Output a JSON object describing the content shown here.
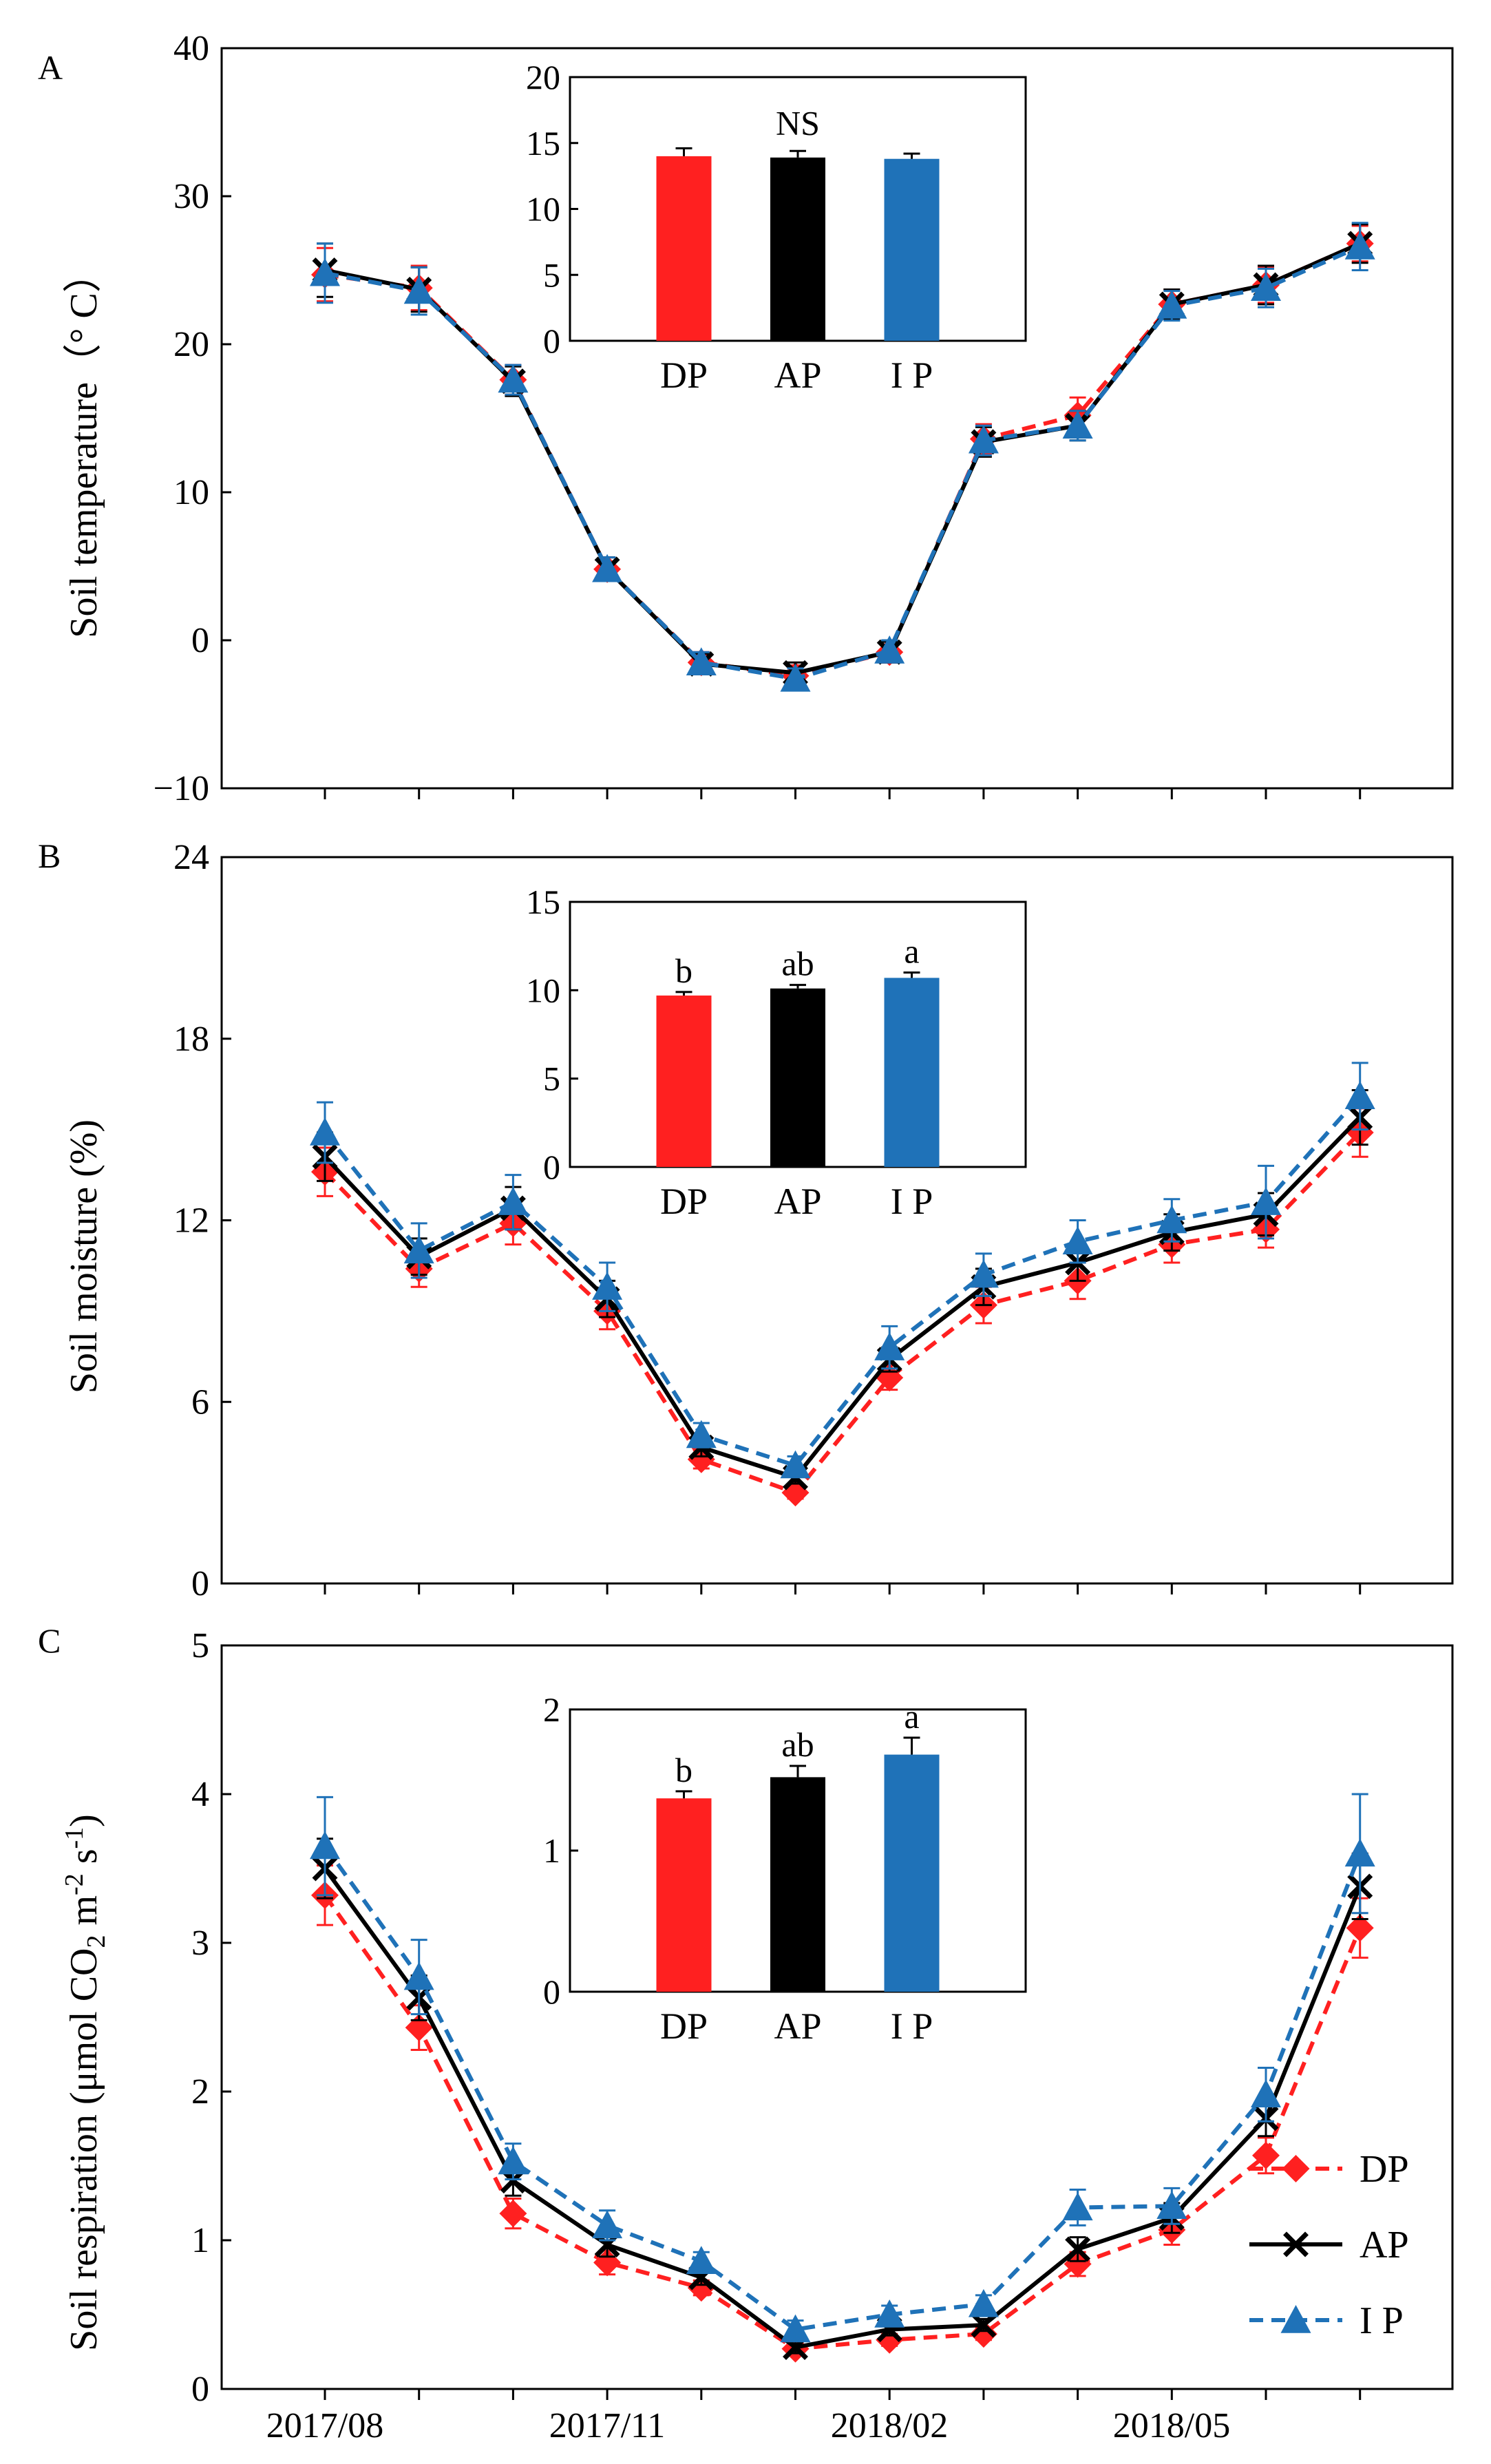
{
  "figure": {
    "x_tick_labels": [
      "2017/08",
      "2017/11",
      "2018/02",
      "2018/05"
    ],
    "legend": [
      {
        "key": "DP",
        "label": "DP"
      },
      {
        "key": "AP",
        "label": "AP"
      },
      {
        "key": "IP",
        "label": "I P"
      }
    ]
  },
  "series_style": {
    "DP": {
      "color": "#ff2020",
      "marker": "diamond",
      "dash": "dashed"
    },
    "AP": {
      "color": "#000000",
      "marker": "x",
      "dash": "solid"
    },
    "IP": {
      "color": "#1f72b8",
      "marker": "triangle",
      "dash": "dashed"
    }
  },
  "chart_data": [
    {
      "type": "line",
      "panel": "A",
      "ylabel": "Soil temperature（° C）",
      "ylim": [
        -10,
        40
      ],
      "yticks": [
        "−10",
        "0",
        "10",
        "20",
        "30",
        "40"
      ],
      "ytick_values": [
        -10,
        0,
        10,
        20,
        30,
        40
      ],
      "x": [
        1,
        2,
        3,
        4,
        5,
        6,
        7,
        8,
        9,
        10,
        11,
        12
      ],
      "series": [
        {
          "name": "DP",
          "values": [
            24.7,
            23.8,
            17.6,
            4.8,
            -1.5,
            -2.4,
            -0.8,
            13.6,
            15.2,
            22.7,
            24.0,
            26.8
          ],
          "err": [
            1.8,
            1.5,
            1.0,
            0.8,
            0.7,
            0.7,
            0.7,
            1.0,
            1.2,
            1.0,
            1.2,
            1.2
          ]
        },
        {
          "name": "AP",
          "values": [
            25.0,
            23.7,
            17.5,
            4.8,
            -1.6,
            -2.2,
            -0.8,
            13.4,
            14.5,
            22.7,
            24.0,
            26.8
          ],
          "err": [
            1.8,
            1.5,
            1.0,
            0.8,
            0.7,
            0.7,
            0.7,
            1.0,
            1.0,
            1.0,
            1.3,
            1.3
          ]
        },
        {
          "name": "IP",
          "values": [
            24.8,
            23.6,
            17.6,
            4.8,
            -1.5,
            -2.6,
            -0.7,
            13.5,
            14.5,
            22.6,
            23.8,
            26.6
          ],
          "err": [
            2.0,
            1.6,
            1.0,
            0.8,
            0.7,
            0.7,
            0.7,
            1.0,
            1.0,
            1.0,
            1.3,
            1.6
          ]
        }
      ],
      "inset": {
        "type": "bar",
        "categories": [
          "DP",
          "AP",
          "I P"
        ],
        "values": [
          14.0,
          13.9,
          13.8
        ],
        "err": [
          0.6,
          0.5,
          0.4
        ],
        "colors": [
          "#ff2020",
          "#000000",
          "#1f72b8"
        ],
        "ylim": [
          0,
          20
        ],
        "yticks": [
          "0",
          "5",
          "10",
          "15",
          "20"
        ],
        "ytick_values": [
          0,
          5,
          10,
          15,
          20
        ],
        "significance_note": "NS",
        "letters": []
      }
    },
    {
      "type": "line",
      "panel": "B",
      "ylabel": "Soil moisture (%)",
      "ylim": [
        0,
        24
      ],
      "yticks": [
        "0",
        "6",
        "12",
        "18",
        "24"
      ],
      "ytick_values": [
        0,
        6,
        12,
        18,
        24
      ],
      "x": [
        1,
        2,
        3,
        4,
        5,
        6,
        7,
        8,
        9,
        10,
        11,
        12
      ],
      "series": [
        {
          "name": "DP",
          "values": [
            13.6,
            10.4,
            11.9,
            9.0,
            4.1,
            3.0,
            6.8,
            9.2,
            10.0,
            11.2,
            11.7,
            14.9
          ],
          "err": [
            0.8,
            0.6,
            0.7,
            0.6,
            0.3,
            0.2,
            0.4,
            0.6,
            0.6,
            0.6,
            0.6,
            0.8
          ]
        },
        {
          "name": "AP",
          "values": [
            14.1,
            10.8,
            12.4,
            9.4,
            4.5,
            3.5,
            7.4,
            9.8,
            10.6,
            11.6,
            12.2,
            15.4
          ],
          "err": [
            0.8,
            0.6,
            0.7,
            0.6,
            0.3,
            0.2,
            0.4,
            0.6,
            0.6,
            0.6,
            0.7,
            0.9
          ]
        },
        {
          "name": "IP",
          "values": [
            14.9,
            11.0,
            12.6,
            9.8,
            4.9,
            3.9,
            7.8,
            10.2,
            11.3,
            12.0,
            12.6,
            16.1
          ],
          "err": [
            1.0,
            0.9,
            0.9,
            0.8,
            0.4,
            0.3,
            0.7,
            0.7,
            0.7,
            0.7,
            1.2,
            1.1
          ]
        }
      ],
      "inset": {
        "type": "bar",
        "categories": [
          "DP",
          "AP",
          "I P"
        ],
        "values": [
          9.7,
          10.1,
          10.7
        ],
        "err": [
          0.2,
          0.2,
          0.3
        ],
        "colors": [
          "#ff2020",
          "#000000",
          "#1f72b8"
        ],
        "ylim": [
          0,
          15
        ],
        "yticks": [
          "0",
          "5",
          "10",
          "15"
        ],
        "ytick_values": [
          0,
          5,
          10,
          15
        ],
        "significance_note": "",
        "letters": [
          "b",
          "ab",
          "a"
        ]
      }
    },
    {
      "type": "line",
      "panel": "C",
      "ylabel": "Soil respiration (μmol CO₂ m⁻² s⁻¹)",
      "ylim": [
        0,
        5
      ],
      "yticks": [
        "0",
        "1",
        "2",
        "3",
        "4",
        "5"
      ],
      "ytick_values": [
        0,
        1,
        2,
        3,
        4,
        5
      ],
      "x": [
        1,
        2,
        3,
        4,
        5,
        6,
        7,
        8,
        9,
        10,
        11,
        12
      ],
      "series": [
        {
          "name": "DP",
          "values": [
            3.32,
            2.43,
            1.18,
            0.85,
            0.68,
            0.27,
            0.33,
            0.37,
            0.84,
            1.07,
            1.57,
            3.1
          ],
          "err": [
            0.2,
            0.15,
            0.1,
            0.08,
            0.05,
            0.04,
            0.04,
            0.04,
            0.08,
            0.1,
            0.12,
            0.2
          ]
        },
        {
          "name": "AP",
          "values": [
            3.5,
            2.63,
            1.4,
            0.97,
            0.75,
            0.28,
            0.4,
            0.43,
            0.94,
            1.15,
            1.82,
            3.38
          ],
          "err": [
            0.2,
            0.15,
            0.1,
            0.08,
            0.05,
            0.04,
            0.04,
            0.04,
            0.08,
            0.1,
            0.12,
            0.22
          ]
        },
        {
          "name": "IP",
          "values": [
            3.65,
            2.77,
            1.53,
            1.1,
            0.86,
            0.4,
            0.5,
            0.57,
            1.22,
            1.23,
            1.98,
            3.6
          ],
          "err": [
            0.33,
            0.25,
            0.12,
            0.1,
            0.06,
            0.06,
            0.06,
            0.06,
            0.12,
            0.12,
            0.18,
            0.4
          ]
        }
      ],
      "inset": {
        "type": "bar",
        "categories": [
          "DP",
          "AP",
          "I P"
        ],
        "values": [
          1.37,
          1.52,
          1.68
        ],
        "err": [
          0.05,
          0.08,
          0.12
        ],
        "colors": [
          "#ff2020",
          "#000000",
          "#1f72b8"
        ],
        "ylim": [
          0,
          2
        ],
        "yticks": [
          "0",
          "1",
          "2"
        ],
        "ytick_values": [
          0,
          1,
          2
        ],
        "significance_note": "",
        "letters": [
          "b",
          "ab",
          "a"
        ]
      }
    }
  ]
}
